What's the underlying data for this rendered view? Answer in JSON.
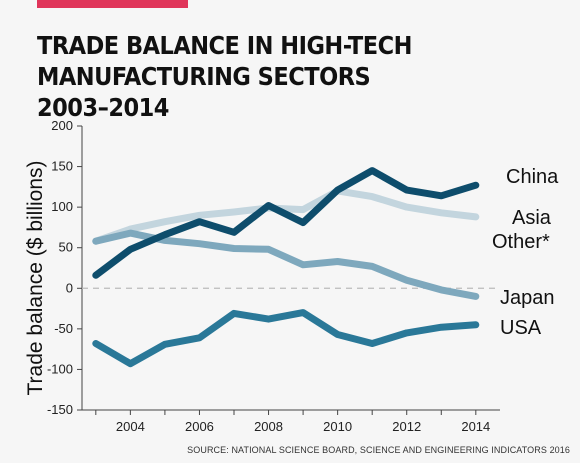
{
  "header": {
    "accent_color": "#e0355a",
    "title_line1": "TRADE BALANCE IN HIGH-TECH MANUFACTURING SECTORS",
    "title_line2": "2003–2014"
  },
  "source": "SOURCE: NATIONAL SCIENCE BOARD, SCIENCE AND ENGINEERING INDICATORS 2016",
  "chart_data": {
    "type": "line",
    "title": "TRADE BALANCE IN HIGH-TECH MANUFACTURING SECTORS 2003–2014",
    "xlabel": "",
    "ylabel": "Trade balance ($ billions)",
    "x": [
      2003,
      2004,
      2005,
      2006,
      2007,
      2008,
      2009,
      2010,
      2011,
      2012,
      2013,
      2014
    ],
    "xlim": [
      2002.6,
      2014.7
    ],
    "ylim": [
      -150,
      200
    ],
    "x_ticks": [
      "2004",
      "2006",
      "2008",
      "2010",
      "2012",
      "2014"
    ],
    "y_ticks": [
      "200",
      "150",
      "100",
      "50",
      "0",
      "-50",
      "-100",
      "-150"
    ],
    "grid": false,
    "zero_line": "dashed",
    "legend": "labels at line ends (right)",
    "series": [
      {
        "name": "Asia Other*",
        "color": "#c3d5de",
        "values": [
          58,
          73,
          82,
          90,
          94,
          99,
          97,
          120,
          113,
          100,
          93,
          88
        ]
      },
      {
        "name": "Japan",
        "color": "#7ea8bd",
        "values": [
          58,
          68,
          59,
          55,
          49,
          48,
          29,
          33,
          27,
          10,
          -2,
          -10
        ]
      },
      {
        "name": "China",
        "color": "#0e4d6c",
        "values": [
          16,
          48,
          66,
          82,
          69,
          102,
          81,
          121,
          145,
          121,
          114,
          127
        ]
      },
      {
        "name": "USA",
        "color": "#2a7898",
        "values": [
          -68,
          -93,
          -69,
          -61,
          -31,
          -38,
          -30,
          -57,
          -68,
          -55,
          -48,
          -45
        ]
      }
    ]
  }
}
